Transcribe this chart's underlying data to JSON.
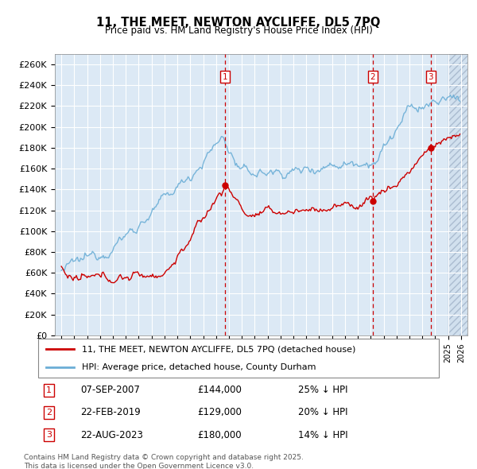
{
  "title": "11, THE MEET, NEWTON AYCLIFFE, DL5 7PQ",
  "subtitle": "Price paid vs. HM Land Registry's House Price Index (HPI)",
  "legend_line1": "11, THE MEET, NEWTON AYCLIFFE, DL5 7PQ (detached house)",
  "legend_line2": "HPI: Average price, detached house, County Durham",
  "footer": "Contains HM Land Registry data © Crown copyright and database right 2025.\nThis data is licensed under the Open Government Licence v3.0.",
  "sale_events": [
    {
      "label": "1",
      "date": "07-SEP-2007",
      "price": 144000,
      "pct": "25% ↓ HPI",
      "x_year": 2007.69
    },
    {
      "label": "2",
      "date": "22-FEB-2019",
      "price": 129000,
      "pct": "20% ↓ HPI",
      "x_year": 2019.14
    },
    {
      "label": "3",
      "date": "22-AUG-2023",
      "price": 180000,
      "pct": "14% ↓ HPI",
      "x_year": 2023.64
    }
  ],
  "ylim": [
    0,
    270000
  ],
  "xlim": [
    1994.5,
    2026.5
  ],
  "yticks": [
    0,
    20000,
    40000,
    60000,
    80000,
    100000,
    120000,
    140000,
    160000,
    180000,
    200000,
    220000,
    240000,
    260000
  ],
  "ytick_labels": [
    "£0",
    "£20K",
    "£40K",
    "£60K",
    "£80K",
    "£100K",
    "£120K",
    "£140K",
    "£160K",
    "£180K",
    "£200K",
    "£220K",
    "£240K",
    "£260K"
  ],
  "red_color": "#cc0000",
  "blue_color": "#6baed6",
  "plot_bg_color": "#dce9f5",
  "hatch_color": "#c8d8e8"
}
